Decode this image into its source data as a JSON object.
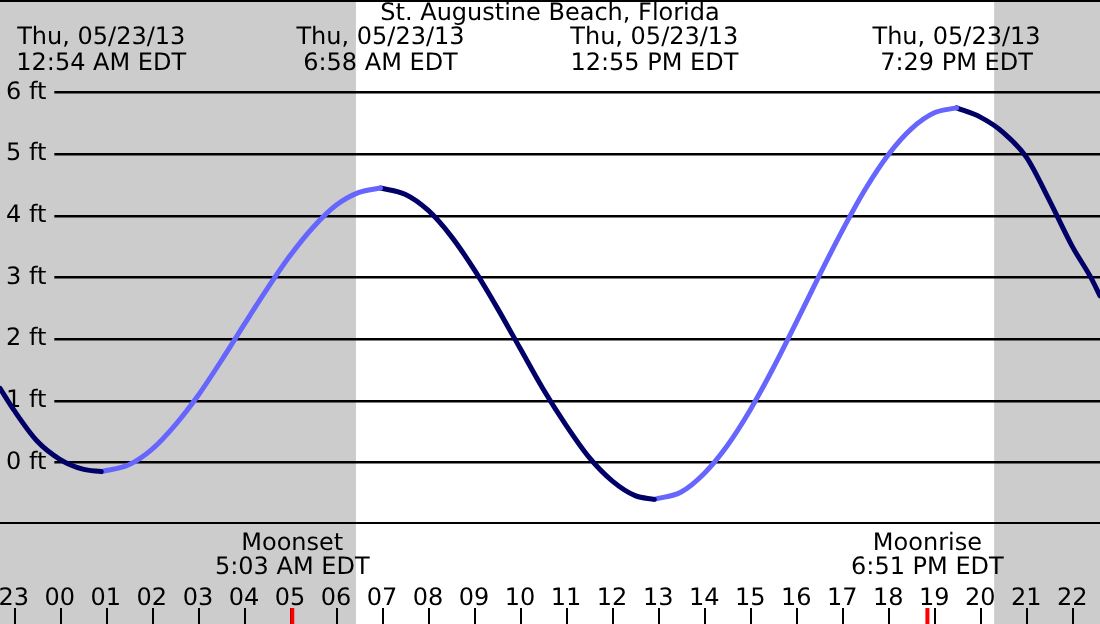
{
  "chart_data": {
    "type": "line",
    "title": "St. Augustine Beach, Florida",
    "xlim": [
      "--05-22T22:42",
      "--05-23T22:36"
    ],
    "xticks": [
      {
        "value": "--05-22T23:00",
        "label": "23"
      },
      {
        "value": "--05-23T00:00",
        "label": "00"
      },
      {
        "value": "--05-23T01:00",
        "label": "01"
      },
      {
        "value": "--05-23T02:00",
        "label": "02"
      },
      {
        "value": "--05-23T03:00",
        "label": "03"
      },
      {
        "value": "--05-23T04:00",
        "label": "04"
      },
      {
        "value": "--05-23T05:00",
        "label": "05"
      },
      {
        "value": "--05-23T06:00",
        "label": "06"
      },
      {
        "value": "--05-23T07:00",
        "label": "07"
      },
      {
        "value": "--05-23T08:00",
        "label": "08"
      },
      {
        "value": "--05-23T09:00",
        "label": "09"
      },
      {
        "value": "--05-23T10:00",
        "label": "10"
      },
      {
        "value": "--05-23T11:00",
        "label": "11"
      },
      {
        "value": "--05-23T12:00",
        "label": "12"
      },
      {
        "value": "--05-23T13:00",
        "label": "13"
      },
      {
        "value": "--05-23T14:00",
        "label": "14"
      },
      {
        "value": "--05-23T15:00",
        "label": "15"
      },
      {
        "value": "--05-23T16:00",
        "label": "16"
      },
      {
        "value": "--05-23T17:00",
        "label": "17"
      },
      {
        "value": "--05-23T18:00",
        "label": "18"
      },
      {
        "value": "--05-23T19:00",
        "label": "19"
      },
      {
        "value": "--05-23T20:00",
        "label": "20"
      },
      {
        "value": "--05-23T21:00",
        "label": "21"
      },
      {
        "value": "--05-23T22:00",
        "label": "22"
      }
    ],
    "x2lim": [
      "--05-22T22:42",
      "--05-23T22:36"
    ],
    "x2ticks": [
      {
        "value": "--05-23T00:54",
        "label": "Thu, 05/23/13\n12:54 AM EDT"
      },
      {
        "value": "--05-23T06:58",
        "label": "Thu, 05/23/13\n6:58 AM EDT"
      },
      {
        "value": "--05-23T12:55",
        "label": "Thu, 05/23/13\n12:55 PM EDT"
      },
      {
        "value": "--05-23T19:29",
        "label": "Thu, 05/23/13\n7:29 PM EDT"
      }
    ],
    "ylim": [
      -1,
      7.5
    ],
    "yticks": [
      {
        "value": 0,
        "label": "0 ft"
      },
      {
        "value": 1,
        "label": "1 ft"
      },
      {
        "value": 2,
        "label": "2 ft"
      },
      {
        "value": 3,
        "label": "3 ft"
      },
      {
        "value": 4,
        "label": "4 ft"
      },
      {
        "value": 5,
        "label": "5 ft"
      },
      {
        "value": 6,
        "label": "6 ft"
      }
    ],
    "grid": "y",
    "legend": false,
    "marker": "none",
    "line_style": "solid",
    "series": [
      {
        "color": "#000066",
        "x": [
          "--05-22T22:42",
          "--05-22T23:00",
          "--05-22T23:30",
          "--05-23T00:00",
          "--05-23T00:30",
          "--05-23T00:54"
        ],
        "values": [
          1.2,
          0.85,
          0.35,
          0.05,
          -0.11,
          -0.15
        ]
      },
      {
        "color": "#6666ff",
        "x": [
          "--05-23T00:54",
          "--05-23T01:30",
          "--05-23T02:00",
          "--05-23T02:30",
          "--05-23T03:00",
          "--05-23T03:30",
          "--05-23T04:00",
          "--05-23T04:30",
          "--05-23T05:00",
          "--05-23T05:30",
          "--05-23T06:00",
          "--05-23T06:30",
          "--05-23T06:58"
        ],
        "values": [
          -0.15,
          -0.04,
          0.21,
          0.6,
          1.08,
          1.64,
          2.23,
          2.81,
          3.35,
          3.81,
          4.17,
          4.38,
          4.45
        ]
      },
      {
        "color": "#000066",
        "x": [
          "--05-23T06:58",
          "--05-23T07:30",
          "--05-23T08:00",
          "--05-23T08:30",
          "--05-23T09:00",
          "--05-23T09:30",
          "--05-23T10:00",
          "--05-23T10:30",
          "--05-23T11:00",
          "--05-23T11:30",
          "--05-23T12:00",
          "--05-23T12:30",
          "--05-23T12:55"
        ],
        "values": [
          4.45,
          4.35,
          4.09,
          3.67,
          3.13,
          2.51,
          1.85,
          1.19,
          0.6,
          0.08,
          -0.3,
          -0.54,
          -0.6
        ]
      },
      {
        "color": "#6666ff",
        "x": [
          "--05-23T12:55",
          "--05-23T13:30",
          "--05-23T14:00",
          "--05-23T14:30",
          "--05-23T15:00",
          "--05-23T15:30",
          "--05-23T16:00",
          "--05-23T16:30",
          "--05-23T17:00",
          "--05-23T17:30",
          "--05-23T18:00",
          "--05-23T18:30",
          "--05-23T19:00",
          "--05-23T19:29"
        ],
        "values": [
          -0.6,
          -0.48,
          -0.18,
          0.27,
          0.85,
          1.53,
          2.27,
          3.03,
          3.76,
          4.43,
          4.99,
          5.41,
          5.67,
          5.75
        ]
      },
      {
        "color": "#000066",
        "x": [
          "--05-23T19:29",
          "--05-23T20:00",
          "--05-23T20:30",
          "--05-23T21:00",
          "--05-23T21:30",
          "--05-23T22:00",
          "--05-23T22:24",
          "--05-23T22:36"
        ],
        "values": [
          5.75,
          5.6,
          5.35,
          4.95,
          4.25,
          3.5,
          3.0,
          2.7
        ]
      }
    ],
    "bands": [
      {
        "axis": "x",
        "from": "--05-22T22:42",
        "to": "--05-23T06:26",
        "color": "#cccccc"
      },
      {
        "axis": "x",
        "from": "--05-23T20:18",
        "to": "--05-23T22:36",
        "color": "#cccccc"
      }
    ],
    "ref_lines": [
      {
        "axis": "x",
        "value": "--05-23T05:03",
        "label": "Moonset\n5:03 AM EDT",
        "color": "#ff0000"
      },
      {
        "axis": "x",
        "value": "--05-23T18:51",
        "label": "Moonrise\n6:51 PM EDT",
        "color": "#ff0000"
      }
    ]
  }
}
